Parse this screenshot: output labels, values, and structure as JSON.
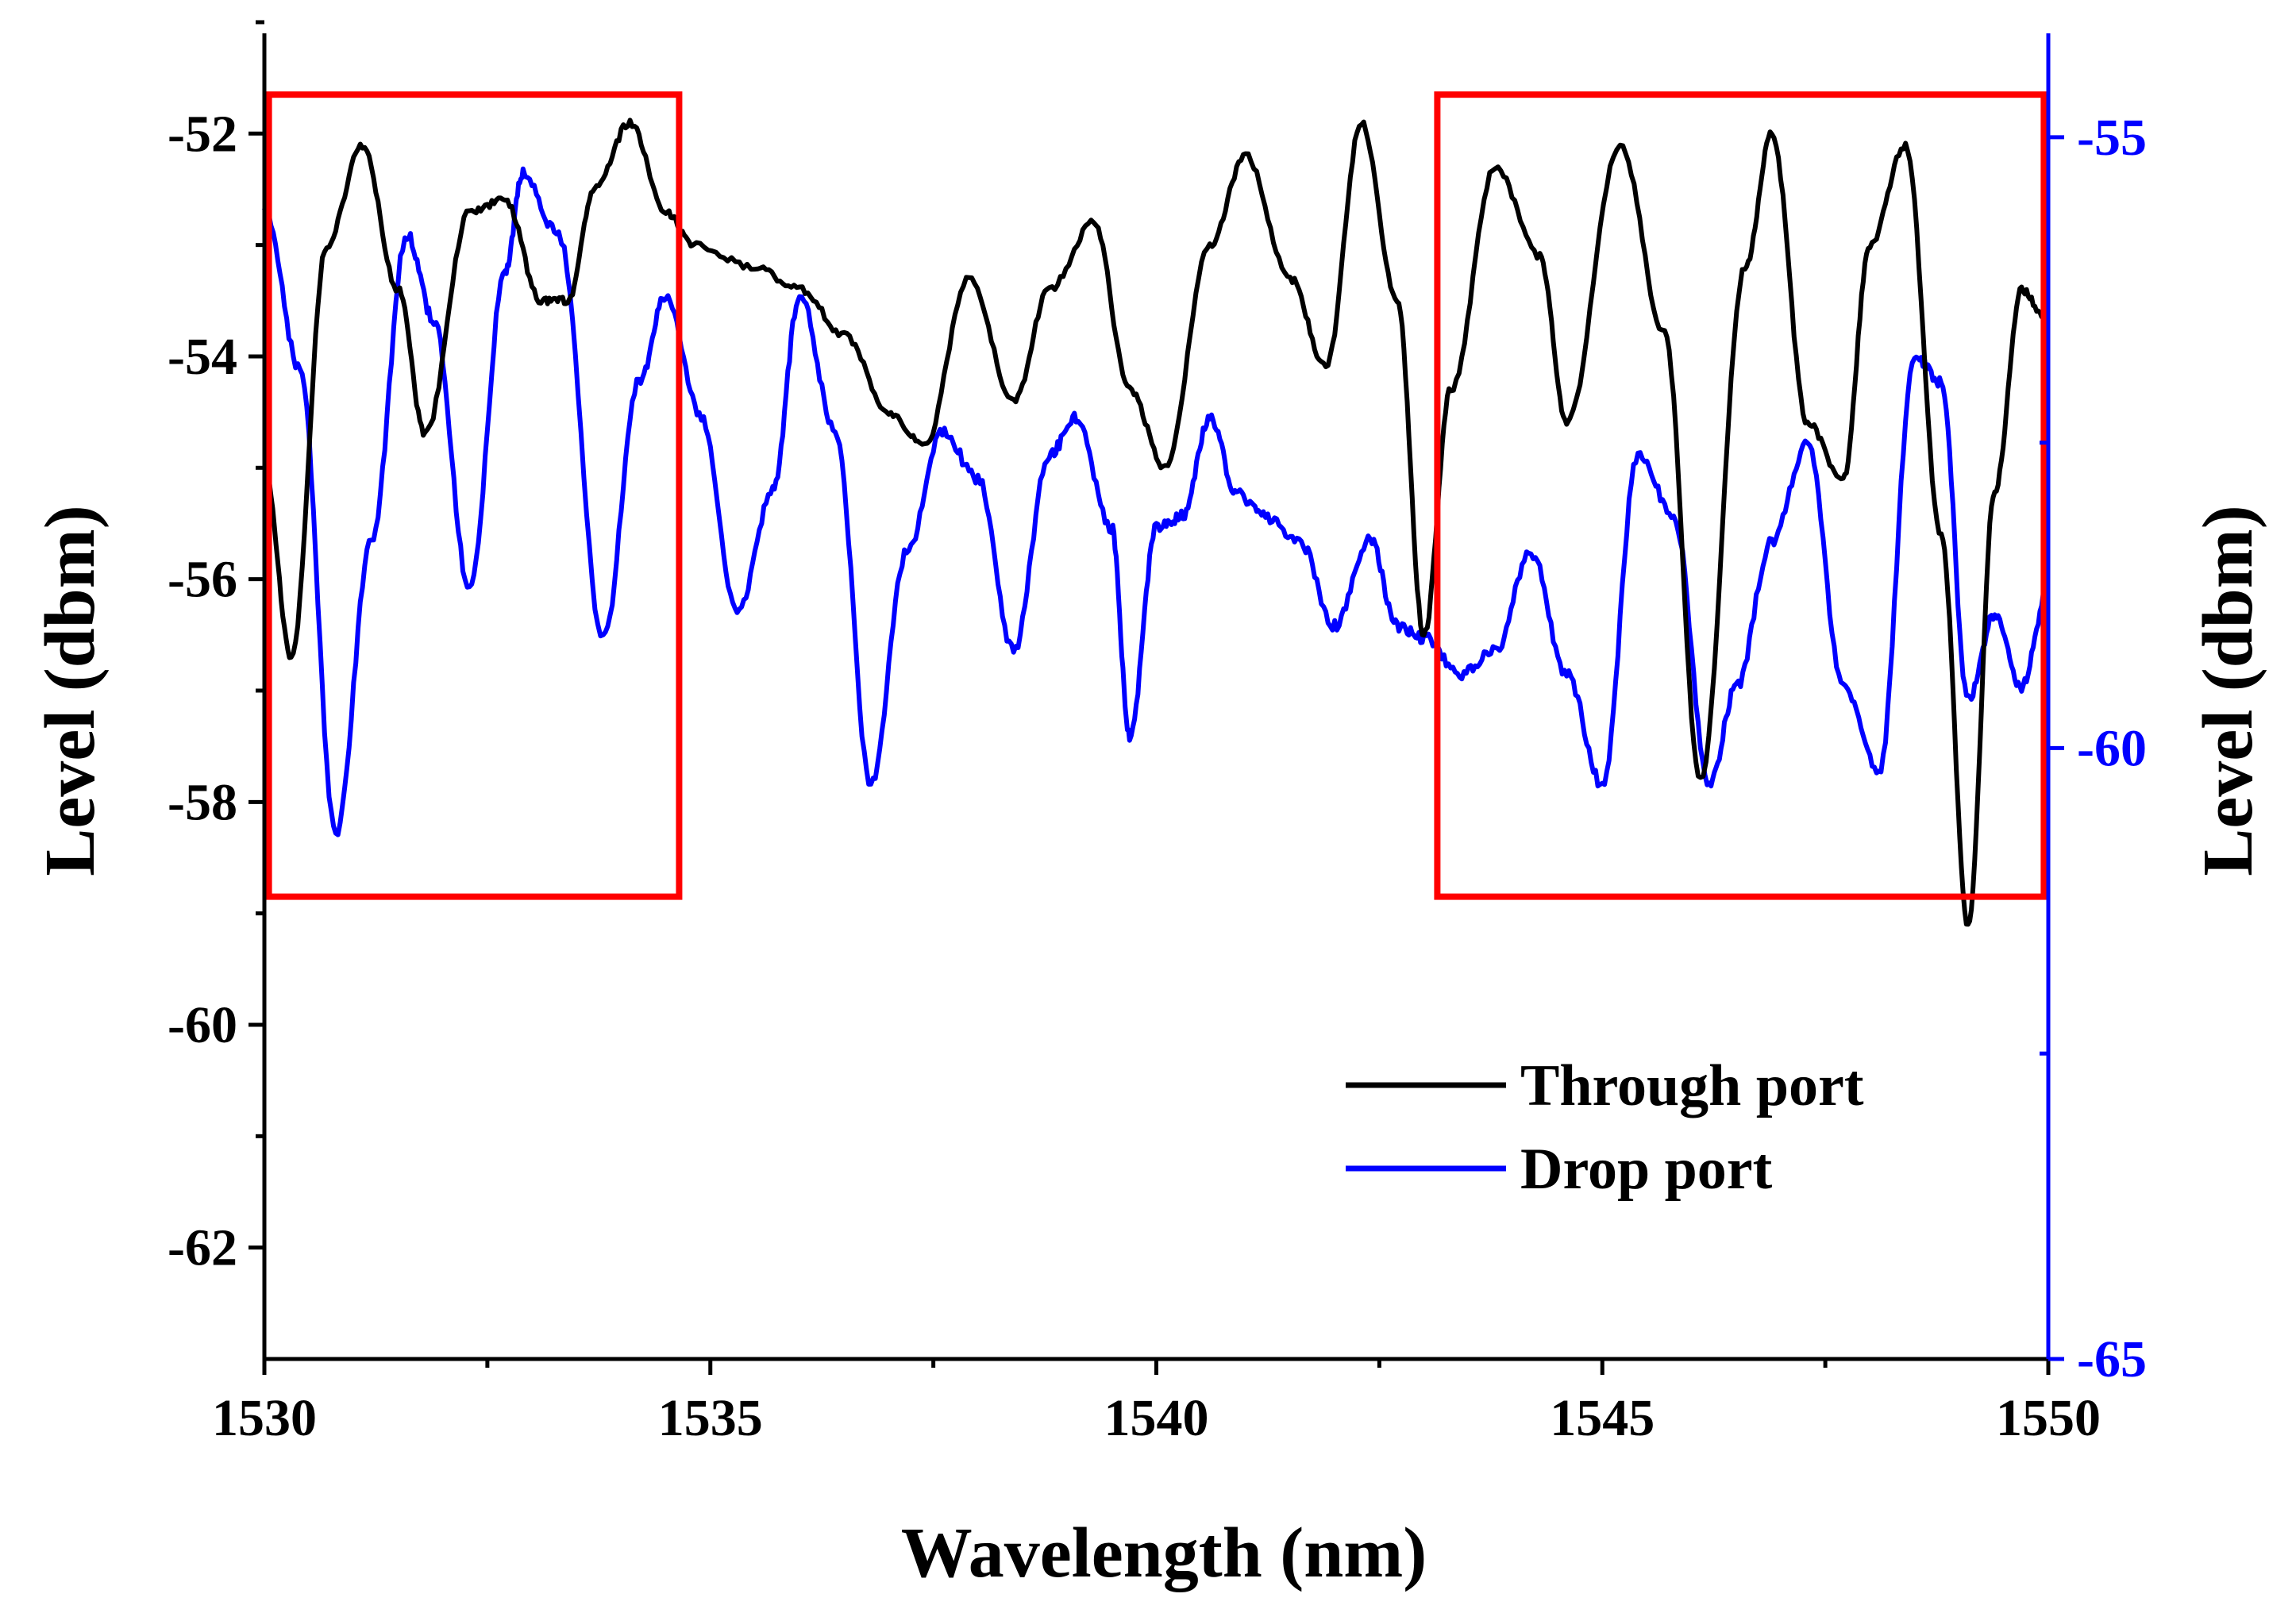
{
  "chart_data": {
    "type": "line",
    "xlabel": "Wavelength (nm)",
    "ylabel_left": "Level (dbm)",
    "ylabel_right": "Level (dbm)",
    "xlim": [
      1530,
      1550
    ],
    "ylim_left": [
      -63,
      -51.1
    ],
    "ylim_right": [
      -65,
      -54.15
    ],
    "x_ticks": [
      1530,
      1535,
      1540,
      1545,
      1550
    ],
    "x_tick_labels": [
      "1530",
      "1535",
      "1540",
      "1545",
      "1550"
    ],
    "y_left_ticks": [
      -52,
      -54,
      -56,
      -58,
      -60,
      -62
    ],
    "y_left_tick_labels": [
      "-52",
      "-54",
      "-56",
      "-58",
      "-60",
      "-62"
    ],
    "y_right_ticks": [
      -55,
      -60,
      -65
    ],
    "y_right_tick_labels": [
      "-55",
      "-60",
      "-65"
    ],
    "colors": {
      "through": "#000000",
      "drop": "#0000ff",
      "highlight": "#ff0000"
    },
    "legend_position": "lower-right",
    "series": [
      {
        "name": "Through port",
        "axis": "left",
        "x": [
          1530.0,
          1530.3,
          1530.7,
          1531.1,
          1531.5,
          1531.8,
          1532.3,
          1532.7,
          1533.1,
          1533.4,
          1533.7,
          1534.1,
          1534.5,
          1534.8,
          1535.5,
          1536.0,
          1536.5,
          1537.0,
          1537.4,
          1537.9,
          1538.4,
          1538.8,
          1539.3,
          1539.7,
          1540.1,
          1540.6,
          1541.0,
          1541.5,
          1541.9,
          1542.3,
          1542.7,
          1543.0,
          1543.3,
          1543.8,
          1544.3,
          1544.6,
          1545.2,
          1545.7,
          1546.1,
          1546.6,
          1546.9,
          1547.3,
          1547.7,
          1548.0,
          1548.4,
          1548.8,
          1549.1,
          1549.4,
          1549.7,
          1550.0
        ],
        "values": [
          -55.0,
          -56.7,
          -53.0,
          -52.1,
          -53.4,
          -54.7,
          -52.7,
          -52.6,
          -53.5,
          -53.5,
          -52.5,
          -51.9,
          -52.7,
          -53.0,
          -53.2,
          -53.4,
          -53.8,
          -54.5,
          -54.8,
          -53.3,
          -54.4,
          -53.4,
          -52.8,
          -54.3,
          -55.0,
          -53.0,
          -52.2,
          -53.3,
          -54.1,
          -51.9,
          -53.5,
          -56.5,
          -54.3,
          -52.3,
          -53.1,
          -54.6,
          -52.1,
          -53.8,
          -57.8,
          -53.2,
          -52.0,
          -54.6,
          -55.1,
          -53.0,
          -52.1,
          -55.6,
          -59.1,
          -55.2,
          -53.4,
          -53.7
        ]
      },
      {
        "name": "Drop port",
        "axis": "right",
        "x": [
          1530.0,
          1530.4,
          1530.8,
          1531.2,
          1531.6,
          1531.9,
          1532.3,
          1532.7,
          1532.9,
          1533.3,
          1533.8,
          1534.2,
          1534.5,
          1534.9,
          1535.3,
          1535.7,
          1536.0,
          1536.4,
          1536.8,
          1537.2,
          1537.6,
          1538.0,
          1538.4,
          1538.8,
          1539.1,
          1539.5,
          1539.7,
          1540.0,
          1540.3,
          1540.6,
          1540.9,
          1541.2,
          1541.6,
          1542.0,
          1542.4,
          1542.7,
          1543.0,
          1543.4,
          1543.8,
          1544.2,
          1544.6,
          1545.0,
          1545.4,
          1545.8,
          1546.2,
          1546.5,
          1546.9,
          1547.3,
          1547.7,
          1548.1,
          1548.5,
          1548.8,
          1549.1,
          1549.4,
          1549.7,
          1550.0
        ],
        "values": [
          -55.6,
          -56.9,
          -60.7,
          -58.3,
          -55.8,
          -56.5,
          -58.7,
          -56.1,
          -55.3,
          -55.8,
          -59.1,
          -57.0,
          -56.3,
          -57.3,
          -58.9,
          -57.9,
          -56.3,
          -57.4,
          -60.3,
          -58.4,
          -57.4,
          -57.8,
          -59.2,
          -57.6,
          -57.3,
          -58.2,
          -59.9,
          -58.2,
          -58.1,
          -57.3,
          -57.9,
          -58.1,
          -58.3,
          -59.0,
          -58.3,
          -59.0,
          -59.1,
          -59.4,
          -59.2,
          -58.4,
          -59.4,
          -60.3,
          -57.6,
          -58.1,
          -60.3,
          -59.5,
          -58.3,
          -57.5,
          -59.5,
          -60.2,
          -56.8,
          -57.0,
          -59.6,
          -58.9,
          -59.5,
          -58.7
        ]
      }
    ],
    "highlight_boxes": [
      {
        "x_range": [
          1530.05,
          1534.65
        ],
        "y_range_left": [
          -58.85,
          -51.65
        ]
      },
      {
        "x_range": [
          1543.15,
          1549.95
        ],
        "y_range_left": [
          -58.85,
          -51.65
        ]
      }
    ]
  }
}
